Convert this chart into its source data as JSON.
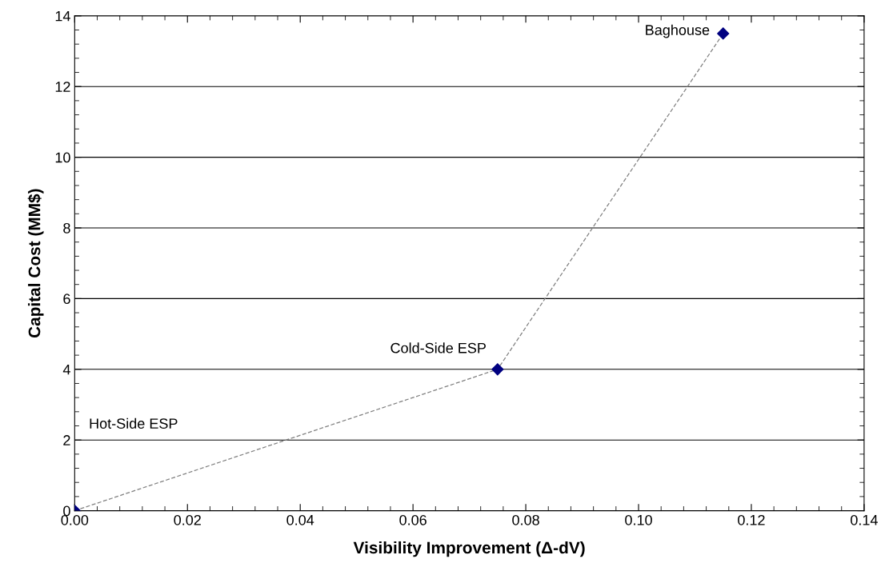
{
  "chart_data": {
    "type": "line",
    "xlabel": "Visibility Improvement (Δ-dV)",
    "ylabel": "Capital Cost (MM$)",
    "x": [
      0.0,
      0.075,
      0.115
    ],
    "series": [
      {
        "color": "#000080",
        "values": [
          0.0,
          4.0,
          13.5
        ]
      }
    ],
    "marker": "diamond",
    "line_style": "dashed",
    "xlim": [
      0,
      0.14
    ],
    "xticks": [
      {
        "value": 0,
        "label": "0.00"
      },
      {
        "value": 0.02,
        "label": "0.02"
      },
      {
        "value": 0.04,
        "label": "0.04"
      },
      {
        "value": 0.06,
        "label": "0.06"
      },
      {
        "value": 0.08,
        "label": "0.08"
      },
      {
        "value": 0.1,
        "label": "0.10"
      },
      {
        "value": 0.12,
        "label": "0.12"
      },
      {
        "value": 0.14,
        "label": "0.14"
      }
    ],
    "ylim": [
      0,
      14
    ],
    "yticks": [
      0,
      2,
      4,
      6,
      8,
      10,
      12,
      14
    ],
    "grid": "y",
    "annotations": [
      "Hot-Side ESP",
      {
        "text": "Cold-Side ESP",
        "x": 0.075,
        "y": 4.0
      },
      {
        "text": "Baghouse",
        "x": 0.115,
        "y": 13.5
      }
    ]
  }
}
